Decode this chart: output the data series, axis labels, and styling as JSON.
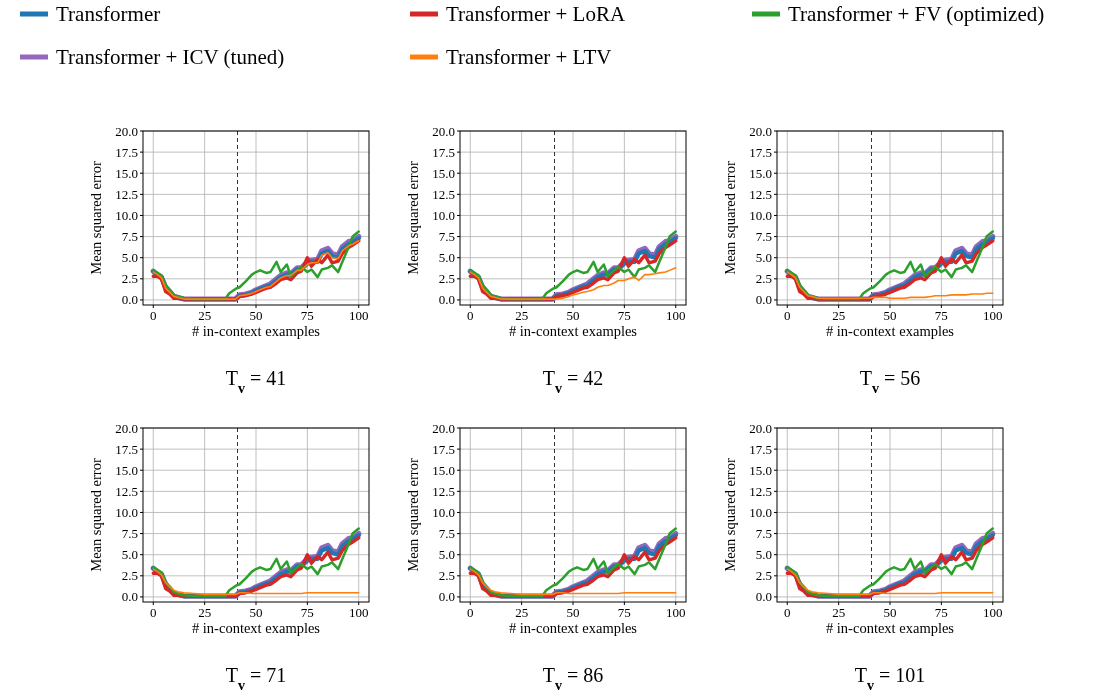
{
  "chart_data": [
    {
      "type": "line",
      "title": "T$_{v}$ = 41",
      "xlabel": "# in-context examples",
      "ylabel": "Mean squared error",
      "legend": "top",
      "grid": true,
      "xlim": [
        -5,
        105
      ],
      "xticks": [
        0,
        25,
        50,
        75,
        100
      ],
      "ylim": [
        -0.6,
        20
      ],
      "yticks": [
        {
          "value": 0,
          "label": "0.0"
        },
        {
          "value": 2.5,
          "label": "2.5"
        },
        {
          "value": 5,
          "label": "5.0"
        },
        {
          "value": 7.5,
          "label": "7.5"
        },
        {
          "value": 10,
          "label": "10.0"
        },
        {
          "value": 12.5,
          "label": "12.5"
        },
        {
          "value": 15,
          "label": "15.0"
        },
        {
          "value": 17.5,
          "label": "17.5"
        },
        {
          "value": 20,
          "label": "20.0"
        }
      ],
      "ref_lines": [
        {
          "axis": "x",
          "value": 41,
          "label": null,
          "color": "#333333",
          "line_style": "dashed"
        }
      ],
      "x": [
        0,
        2,
        4,
        6,
        8,
        10,
        12,
        15,
        20,
        25,
        30,
        35,
        37,
        40,
        42,
        45,
        48,
        50,
        52,
        55,
        57,
        60,
        62,
        65,
        67,
        70,
        72,
        75,
        77,
        80,
        82,
        85,
        87,
        90,
        92,
        95,
        97,
        100
      ],
      "series": [
        {
          "name": "Transformer",
          "color": "#1f77b4",
          "values": [
            3.4,
            3.0,
            2.7,
            1.5,
            1.0,
            0.4,
            0.3,
            0.1,
            0.1,
            0.1,
            0.1,
            0.1,
            0.1,
            0.1,
            0.5,
            0.6,
            0.8,
            1.1,
            1.3,
            1.6,
            1.7,
            2.3,
            2.7,
            3.0,
            3.0,
            3.6,
            3.6,
            4.3,
            4.5,
            4.5,
            5.5,
            5.8,
            5.2,
            5.0,
            6.0,
            6.6,
            6.8,
            7.3
          ]
        },
        {
          "name": "Transformer + LoRA",
          "color": "#d62728",
          "values": [
            2.8,
            2.8,
            2.5,
            1.0,
            0.7,
            0.2,
            0.2,
            0.1,
            0.1,
            0.1,
            0.1,
            0.1,
            0.1,
            0.1,
            0.4,
            0.5,
            0.7,
            0.9,
            1.1,
            1.4,
            1.5,
            2.0,
            2.4,
            2.6,
            2.4,
            3.2,
            3.4,
            5.0,
            4.0,
            4.8,
            4.4,
            5.3,
            4.4,
            4.6,
            5.5,
            6.2,
            6.5,
            7.0
          ]
        },
        {
          "name": "Transformer + FV (optimized)",
          "color": "#2ca02c",
          "values": [
            3.5,
            3.2,
            2.9,
            1.8,
            1.2,
            0.6,
            0.4,
            0.2,
            0.1,
            0.1,
            0.1,
            0.1,
            0.8,
            1.3,
            1.5,
            2.2,
            3.0,
            3.3,
            3.5,
            3.2,
            3.3,
            4.5,
            3.3,
            4.2,
            2.8,
            3.5,
            3.9,
            3.3,
            3.6,
            2.7,
            3.6,
            3.8,
            4.1,
            3.3,
            4.5,
            6.2,
            7.5,
            8.1
          ]
        },
        {
          "name": "Transformer + ICV (tuned)",
          "color": "#9467bd",
          "values": [
            3.4,
            3.0,
            2.7,
            1.5,
            1.0,
            0.4,
            0.3,
            0.1,
            0.1,
            0.1,
            0.1,
            0.1,
            0.1,
            0.1,
            0.6,
            0.7,
            0.9,
            1.2,
            1.4,
            1.7,
            1.9,
            2.5,
            2.9,
            3.2,
            3.1,
            3.8,
            3.8,
            4.5,
            4.7,
            4.8,
            5.8,
            6.1,
            5.5,
            5.3,
            6.3,
            6.9,
            7.0,
            7.5
          ]
        },
        {
          "name": "Transformer + LTV",
          "color": "#ff7f0e",
          "values": [
            3.3,
            3.0,
            2.6,
            1.4,
            0.9,
            0.4,
            0.3,
            0.1,
            0.1,
            0.1,
            0.1,
            0.1,
            0.1,
            0.1,
            0.5,
            0.6,
            0.8,
            1.0,
            1.2,
            1.5,
            1.6,
            2.2,
            2.6,
            2.9,
            2.9,
            3.5,
            3.5,
            4.2,
            4.4,
            4.4,
            5.3,
            5.6,
            5.0,
            4.9,
            5.8,
            6.4,
            6.6,
            7.0
          ]
        }
      ]
    },
    {
      "type": "line",
      "title": "T$_{v}$ = 42",
      "xlabel": "# in-context examples",
      "ylabel": "Mean squared error",
      "grid": true,
      "xlim": [
        -5,
        105
      ],
      "xticks": [
        0,
        25,
        50,
        75,
        100
      ],
      "ylim": [
        -0.6,
        20
      ],
      "yticks": [
        {
          "value": 0,
          "label": "0.0"
        },
        {
          "value": 2.5,
          "label": "2.5"
        },
        {
          "value": 5,
          "label": "5.0"
        },
        {
          "value": 7.5,
          "label": "7.5"
        },
        {
          "value": 10,
          "label": "10.0"
        },
        {
          "value": 12.5,
          "label": "12.5"
        },
        {
          "value": 15,
          "label": "15.0"
        },
        {
          "value": 17.5,
          "label": "17.5"
        },
        {
          "value": 20,
          "label": "20.0"
        }
      ],
      "ref_lines": [
        {
          "axis": "x",
          "value": 41,
          "label": null,
          "color": "#333333",
          "line_style": "dashed"
        }
      ],
      "x": [
        0,
        2,
        4,
        6,
        8,
        10,
        12,
        15,
        20,
        25,
        30,
        35,
        37,
        40,
        42,
        45,
        48,
        50,
        52,
        55,
        57,
        60,
        62,
        65,
        67,
        70,
        72,
        75,
        77,
        80,
        82,
        85,
        87,
        90,
        92,
        95,
        97,
        100
      ],
      "series": [
        {
          "color": "#1f77b4",
          "values": [
            3.4,
            3.0,
            2.7,
            1.5,
            1.0,
            0.4,
            0.3,
            0.1,
            0.1,
            0.1,
            0.1,
            0.1,
            0.1,
            0.1,
            0.5,
            0.6,
            0.8,
            1.1,
            1.3,
            1.6,
            1.7,
            2.3,
            2.7,
            3.0,
            3.0,
            3.6,
            3.6,
            4.3,
            4.5,
            4.5,
            5.5,
            5.8,
            5.2,
            5.0,
            6.0,
            6.6,
            6.8,
            7.3
          ]
        },
        {
          "color": "#d62728",
          "values": [
            2.8,
            2.8,
            2.5,
            1.0,
            0.7,
            0.2,
            0.2,
            0.1,
            0.1,
            0.1,
            0.1,
            0.1,
            0.1,
            0.1,
            0.4,
            0.5,
            0.7,
            0.9,
            1.1,
            1.4,
            1.5,
            2.0,
            2.4,
            2.6,
            2.4,
            3.2,
            3.4,
            5.0,
            4.0,
            4.8,
            4.4,
            5.3,
            4.4,
            4.6,
            5.5,
            6.2,
            6.5,
            7.0
          ]
        },
        {
          "color": "#2ca02c",
          "values": [
            3.5,
            3.2,
            2.9,
            1.8,
            1.2,
            0.6,
            0.4,
            0.2,
            0.1,
            0.1,
            0.1,
            0.1,
            0.8,
            1.3,
            1.5,
            2.2,
            3.0,
            3.3,
            3.5,
            3.2,
            3.3,
            4.5,
            3.3,
            4.2,
            2.8,
            3.5,
            3.9,
            3.3,
            3.6,
            2.7,
            3.6,
            3.8,
            4.1,
            3.3,
            4.5,
            6.2,
            7.5,
            8.1
          ]
        },
        {
          "color": "#9467bd",
          "values": [
            3.4,
            3.0,
            2.7,
            1.5,
            1.0,
            0.4,
            0.3,
            0.1,
            0.1,
            0.1,
            0.1,
            0.1,
            0.1,
            0.1,
            0.6,
            0.7,
            0.9,
            1.2,
            1.4,
            1.7,
            1.9,
            2.5,
            2.9,
            3.2,
            3.1,
            3.8,
            3.8,
            4.5,
            4.7,
            4.8,
            5.8,
            6.1,
            5.5,
            5.3,
            6.3,
            6.9,
            7.0,
            7.5
          ]
        },
        {
          "color": "#ff7f0e",
          "values": [
            3.3,
            3.0,
            2.6,
            1.4,
            0.9,
            0.4,
            0.3,
            0.1,
            0.1,
            0.1,
            0.1,
            0.1,
            0.1,
            0.1,
            0.1,
            0.2,
            0.4,
            0.6,
            0.7,
            0.9,
            1.0,
            1.2,
            1.5,
            1.7,
            1.7,
            2.0,
            2.3,
            2.3,
            2.5,
            2.7,
            2.3,
            3.0,
            3.0,
            3.1,
            3.2,
            3.3,
            3.5,
            3.8
          ]
        }
      ]
    },
    {
      "type": "line",
      "title": "T$_{v}$ = 56",
      "xlabel": "# in-context examples",
      "ylabel": "Mean squared error",
      "grid": true,
      "xlim": [
        -5,
        105
      ],
      "xticks": [
        0,
        25,
        50,
        75,
        100
      ],
      "ylim": [
        -0.6,
        20
      ],
      "yticks": [
        {
          "value": 0,
          "label": "0.0"
        },
        {
          "value": 2.5,
          "label": "2.5"
        },
        {
          "value": 5,
          "label": "5.0"
        },
        {
          "value": 7.5,
          "label": "7.5"
        },
        {
          "value": 10,
          "label": "10.0"
        },
        {
          "value": 12.5,
          "label": "12.5"
        },
        {
          "value": 15,
          "label": "15.0"
        },
        {
          "value": 17.5,
          "label": "17.5"
        },
        {
          "value": 20,
          "label": "20.0"
        }
      ],
      "ref_lines": [
        {
          "axis": "x",
          "value": 41,
          "label": null,
          "color": "#333333",
          "line_style": "dashed"
        }
      ],
      "x": [
        0,
        2,
        4,
        6,
        8,
        10,
        12,
        15,
        20,
        25,
        30,
        35,
        37,
        40,
        42,
        45,
        48,
        50,
        52,
        55,
        57,
        60,
        62,
        65,
        67,
        70,
        72,
        75,
        77,
        80,
        82,
        85,
        87,
        90,
        92,
        95,
        97,
        100
      ],
      "series": [
        {
          "color": "#1f77b4",
          "values": [
            3.4,
            3.0,
            2.7,
            1.5,
            1.0,
            0.4,
            0.3,
            0.1,
            0.1,
            0.1,
            0.1,
            0.1,
            0.1,
            0.1,
            0.5,
            0.6,
            0.8,
            1.1,
            1.3,
            1.6,
            1.7,
            2.3,
            2.7,
            3.0,
            3.0,
            3.6,
            3.6,
            4.3,
            4.5,
            4.5,
            5.5,
            5.8,
            5.2,
            5.0,
            6.0,
            6.6,
            6.8,
            7.3
          ]
        },
        {
          "color": "#d62728",
          "values": [
            2.8,
            2.8,
            2.5,
            1.0,
            0.7,
            0.2,
            0.2,
            0.1,
            0.1,
            0.1,
            0.1,
            0.1,
            0.1,
            0.1,
            0.4,
            0.5,
            0.7,
            0.9,
            1.1,
            1.4,
            1.5,
            2.0,
            2.4,
            2.6,
            2.4,
            3.2,
            3.4,
            5.0,
            4.0,
            4.8,
            4.4,
            5.3,
            4.4,
            4.6,
            5.5,
            6.2,
            6.5,
            7.0
          ]
        },
        {
          "color": "#2ca02c",
          "values": [
            3.5,
            3.2,
            2.9,
            1.8,
            1.2,
            0.6,
            0.4,
            0.2,
            0.1,
            0.1,
            0.1,
            0.1,
            0.8,
            1.3,
            1.5,
            2.2,
            3.0,
            3.3,
            3.5,
            3.2,
            3.3,
            4.5,
            3.3,
            4.2,
            2.8,
            3.5,
            3.9,
            3.3,
            3.6,
            2.7,
            3.6,
            3.8,
            4.1,
            3.3,
            4.5,
            6.2,
            7.5,
            8.1
          ]
        },
        {
          "color": "#9467bd",
          "values": [
            3.4,
            3.0,
            2.7,
            1.5,
            1.0,
            0.4,
            0.3,
            0.1,
            0.1,
            0.1,
            0.1,
            0.1,
            0.1,
            0.1,
            0.6,
            0.7,
            0.9,
            1.2,
            1.4,
            1.7,
            1.9,
            2.5,
            2.9,
            3.2,
            3.1,
            3.8,
            3.8,
            4.5,
            4.7,
            4.8,
            5.8,
            6.1,
            5.5,
            5.3,
            6.3,
            6.9,
            7.0,
            7.5
          ]
        },
        {
          "color": "#ff7f0e",
          "values": [
            3.3,
            3.0,
            2.6,
            1.5,
            1.0,
            0.5,
            0.4,
            0.2,
            0.2,
            0.2,
            0.2,
            0.2,
            0.2,
            0.2,
            0.3,
            0.3,
            0.3,
            0.2,
            0.2,
            0.2,
            0.2,
            0.3,
            0.3,
            0.3,
            0.3,
            0.4,
            0.5,
            0.5,
            0.5,
            0.6,
            0.6,
            0.6,
            0.6,
            0.7,
            0.7,
            0.7,
            0.8,
            0.8
          ]
        }
      ]
    },
    {
      "type": "line",
      "title": "T$_{v}$ = 71",
      "xlabel": "# in-context examples",
      "ylabel": "Mean squared error",
      "grid": true,
      "xlim": [
        -5,
        105
      ],
      "xticks": [
        0,
        25,
        50,
        75,
        100
      ],
      "ylim": [
        -0.6,
        20
      ],
      "yticks": [
        {
          "value": 0,
          "label": "0.0"
        },
        {
          "value": 2.5,
          "label": "2.5"
        },
        {
          "value": 5,
          "label": "5.0"
        },
        {
          "value": 7.5,
          "label": "7.5"
        },
        {
          "value": 10,
          "label": "10.0"
        },
        {
          "value": 12.5,
          "label": "12.5"
        },
        {
          "value": 15,
          "label": "15.0"
        },
        {
          "value": 17.5,
          "label": "17.5"
        },
        {
          "value": 20,
          "label": "20.0"
        }
      ],
      "ref_lines": [
        {
          "axis": "x",
          "value": 41,
          "label": null,
          "color": "#333333",
          "line_style": "dashed"
        }
      ],
      "x": [
        0,
        2,
        4,
        6,
        8,
        10,
        12,
        15,
        20,
        25,
        30,
        35,
        37,
        40,
        42,
        45,
        48,
        50,
        52,
        55,
        57,
        60,
        62,
        65,
        67,
        70,
        72,
        75,
        77,
        80,
        82,
        85,
        87,
        90,
        92,
        95,
        97,
        100
      ],
      "series": [
        {
          "color": "#1f77b4",
          "values": [
            3.4,
            3.0,
            2.7,
            1.5,
            1.0,
            0.4,
            0.3,
            0.1,
            0.1,
            0.1,
            0.1,
            0.1,
            0.1,
            0.1,
            0.5,
            0.6,
            0.8,
            1.1,
            1.3,
            1.6,
            1.7,
            2.3,
            2.7,
            3.0,
            3.0,
            3.6,
            3.6,
            4.3,
            4.5,
            4.5,
            5.5,
            5.8,
            5.2,
            5.0,
            6.0,
            6.6,
            6.8,
            7.3
          ]
        },
        {
          "color": "#d62728",
          "values": [
            2.8,
            2.8,
            2.5,
            1.0,
            0.7,
            0.2,
            0.2,
            0.1,
            0.1,
            0.1,
            0.1,
            0.1,
            0.1,
            0.1,
            0.4,
            0.5,
            0.7,
            0.9,
            1.1,
            1.4,
            1.5,
            2.0,
            2.4,
            2.6,
            2.4,
            3.2,
            3.4,
            5.0,
            4.0,
            4.8,
            4.4,
            5.3,
            4.4,
            4.6,
            5.5,
            6.2,
            6.5,
            7.0
          ]
        },
        {
          "color": "#2ca02c",
          "values": [
            3.5,
            3.2,
            2.9,
            1.8,
            1.2,
            0.6,
            0.4,
            0.2,
            0.1,
            0.1,
            0.1,
            0.1,
            0.8,
            1.3,
            1.5,
            2.2,
            3.0,
            3.3,
            3.5,
            3.2,
            3.3,
            4.5,
            3.3,
            4.2,
            2.8,
            3.5,
            3.9,
            3.3,
            3.6,
            2.7,
            3.6,
            3.8,
            4.1,
            3.3,
            4.5,
            6.2,
            7.5,
            8.1
          ]
        },
        {
          "color": "#9467bd",
          "values": [
            3.4,
            3.0,
            2.7,
            1.5,
            1.0,
            0.4,
            0.3,
            0.1,
            0.1,
            0.1,
            0.1,
            0.1,
            0.1,
            0.1,
            0.6,
            0.7,
            0.9,
            1.2,
            1.4,
            1.7,
            1.9,
            2.5,
            2.9,
            3.2,
            3.1,
            3.8,
            3.8,
            4.5,
            4.7,
            4.8,
            5.8,
            6.1,
            5.5,
            5.3,
            6.3,
            6.9,
            7.0,
            7.5
          ]
        },
        {
          "color": "#ff7f0e",
          "values": [
            3.3,
            3.0,
            2.6,
            1.7,
            1.2,
            0.8,
            0.6,
            0.5,
            0.4,
            0.3,
            0.3,
            0.3,
            0.3,
            0.3,
            0.5,
            0.5,
            0.4,
            0.4,
            0.4,
            0.4,
            0.4,
            0.4,
            0.4,
            0.4,
            0.4,
            0.4,
            0.4,
            0.5,
            0.5,
            0.5,
            0.5,
            0.5,
            0.5,
            0.5,
            0.5,
            0.5,
            0.5,
            0.5
          ]
        }
      ]
    },
    {
      "type": "line",
      "title": "T$_{v}$ = 86",
      "xlabel": "# in-context examples",
      "ylabel": "Mean squared error",
      "grid": true,
      "xlim": [
        -5,
        105
      ],
      "xticks": [
        0,
        25,
        50,
        75,
        100
      ],
      "ylim": [
        -0.6,
        20
      ],
      "yticks": [
        {
          "value": 0,
          "label": "0.0"
        },
        {
          "value": 2.5,
          "label": "2.5"
        },
        {
          "value": 5,
          "label": "5.0"
        },
        {
          "value": 7.5,
          "label": "7.5"
        },
        {
          "value": 10,
          "label": "10.0"
        },
        {
          "value": 12.5,
          "label": "12.5"
        },
        {
          "value": 15,
          "label": "15.0"
        },
        {
          "value": 17.5,
          "label": "17.5"
        },
        {
          "value": 20,
          "label": "20.0"
        }
      ],
      "ref_lines": [
        {
          "axis": "x",
          "value": 41,
          "label": null,
          "color": "#333333",
          "line_style": "dashed"
        }
      ],
      "x": [
        0,
        2,
        4,
        6,
        8,
        10,
        12,
        15,
        20,
        25,
        30,
        35,
        37,
        40,
        42,
        45,
        48,
        50,
        52,
        55,
        57,
        60,
        62,
        65,
        67,
        70,
        72,
        75,
        77,
        80,
        82,
        85,
        87,
        90,
        92,
        95,
        97,
        100
      ],
      "series": [
        {
          "color": "#1f77b4",
          "values": [
            3.4,
            3.0,
            2.7,
            1.5,
            1.0,
            0.4,
            0.3,
            0.1,
            0.1,
            0.1,
            0.1,
            0.1,
            0.1,
            0.1,
            0.5,
            0.6,
            0.8,
            1.1,
            1.3,
            1.6,
            1.7,
            2.3,
            2.7,
            3.0,
            3.0,
            3.6,
            3.6,
            4.3,
            4.5,
            4.5,
            5.5,
            5.8,
            5.2,
            5.0,
            6.0,
            6.6,
            6.8,
            7.3
          ]
        },
        {
          "color": "#d62728",
          "values": [
            2.8,
            2.8,
            2.5,
            1.0,
            0.7,
            0.2,
            0.2,
            0.1,
            0.1,
            0.1,
            0.1,
            0.1,
            0.1,
            0.1,
            0.4,
            0.5,
            0.7,
            0.9,
            1.1,
            1.4,
            1.5,
            2.0,
            2.4,
            2.6,
            2.4,
            3.2,
            3.4,
            5.0,
            4.0,
            4.8,
            4.4,
            5.3,
            4.4,
            4.6,
            5.5,
            6.2,
            6.5,
            7.0
          ]
        },
        {
          "color": "#2ca02c",
          "values": [
            3.5,
            3.2,
            2.9,
            1.8,
            1.2,
            0.6,
            0.4,
            0.2,
            0.1,
            0.1,
            0.1,
            0.1,
            0.8,
            1.3,
            1.5,
            2.2,
            3.0,
            3.3,
            3.5,
            3.2,
            3.3,
            4.5,
            3.3,
            4.2,
            2.8,
            3.5,
            3.9,
            3.3,
            3.6,
            2.7,
            3.6,
            3.8,
            4.1,
            3.3,
            4.5,
            6.2,
            7.5,
            8.1
          ]
        },
        {
          "color": "#9467bd",
          "values": [
            3.4,
            3.0,
            2.7,
            1.5,
            1.0,
            0.4,
            0.3,
            0.1,
            0.1,
            0.1,
            0.1,
            0.1,
            0.1,
            0.1,
            0.6,
            0.7,
            0.9,
            1.2,
            1.4,
            1.7,
            1.9,
            2.5,
            2.9,
            3.2,
            3.1,
            3.8,
            3.8,
            4.5,
            4.7,
            4.8,
            5.8,
            6.1,
            5.5,
            5.3,
            6.3,
            6.9,
            7.0,
            7.5
          ]
        },
        {
          "color": "#ff7f0e",
          "values": [
            3.3,
            3.0,
            2.6,
            1.7,
            1.2,
            0.8,
            0.6,
            0.5,
            0.4,
            0.3,
            0.3,
            0.3,
            0.3,
            0.3,
            0.5,
            0.5,
            0.4,
            0.4,
            0.4,
            0.4,
            0.4,
            0.4,
            0.4,
            0.4,
            0.4,
            0.4,
            0.4,
            0.5,
            0.5,
            0.5,
            0.5,
            0.5,
            0.5,
            0.5,
            0.5,
            0.5,
            0.5,
            0.5
          ]
        }
      ]
    },
    {
      "type": "line",
      "title": "T$_{v}$ = 101",
      "xlabel": "# in-context examples",
      "ylabel": "Mean squared error",
      "grid": true,
      "xlim": [
        -5,
        105
      ],
      "xticks": [
        0,
        25,
        50,
        75,
        100
      ],
      "ylim": [
        -0.6,
        20
      ],
      "yticks": [
        {
          "value": 0,
          "label": "0.0"
        },
        {
          "value": 2.5,
          "label": "2.5"
        },
        {
          "value": 5,
          "label": "5.0"
        },
        {
          "value": 7.5,
          "label": "7.5"
        },
        {
          "value": 10,
          "label": "10.0"
        },
        {
          "value": 12.5,
          "label": "12.5"
        },
        {
          "value": 15,
          "label": "15.0"
        },
        {
          "value": 17.5,
          "label": "17.5"
        },
        {
          "value": 20,
          "label": "20.0"
        }
      ],
      "ref_lines": [
        {
          "axis": "x",
          "value": 41,
          "label": null,
          "color": "#333333",
          "line_style": "dashed"
        }
      ],
      "x": [
        0,
        2,
        4,
        6,
        8,
        10,
        12,
        15,
        20,
        25,
        30,
        35,
        37,
        40,
        42,
        45,
        48,
        50,
        52,
        55,
        57,
        60,
        62,
        65,
        67,
        70,
        72,
        75,
        77,
        80,
        82,
        85,
        87,
        90,
        92,
        95,
        97,
        100
      ],
      "series": [
        {
          "color": "#1f77b4",
          "values": [
            3.4,
            3.0,
            2.7,
            1.5,
            1.0,
            0.4,
            0.3,
            0.1,
            0.1,
            0.1,
            0.1,
            0.1,
            0.1,
            0.1,
            0.5,
            0.6,
            0.8,
            1.1,
            1.3,
            1.6,
            1.7,
            2.3,
            2.7,
            3.0,
            3.0,
            3.6,
            3.6,
            4.3,
            4.5,
            4.5,
            5.5,
            5.8,
            5.2,
            5.0,
            6.0,
            6.6,
            6.8,
            7.3
          ]
        },
        {
          "color": "#d62728",
          "values": [
            2.8,
            2.8,
            2.5,
            1.0,
            0.7,
            0.2,
            0.2,
            0.1,
            0.1,
            0.1,
            0.1,
            0.1,
            0.1,
            0.1,
            0.4,
            0.5,
            0.7,
            0.9,
            1.1,
            1.4,
            1.5,
            2.0,
            2.4,
            2.6,
            2.4,
            3.2,
            3.4,
            5.0,
            4.0,
            4.8,
            4.4,
            5.3,
            4.4,
            4.6,
            5.5,
            6.2,
            6.5,
            7.0
          ]
        },
        {
          "color": "#2ca02c",
          "values": [
            3.5,
            3.2,
            2.9,
            1.8,
            1.2,
            0.6,
            0.4,
            0.2,
            0.1,
            0.1,
            0.1,
            0.1,
            0.8,
            1.3,
            1.5,
            2.2,
            3.0,
            3.3,
            3.5,
            3.2,
            3.3,
            4.5,
            3.3,
            4.2,
            2.8,
            3.5,
            3.9,
            3.3,
            3.6,
            2.7,
            3.6,
            3.8,
            4.1,
            3.3,
            4.5,
            6.2,
            7.5,
            8.1
          ]
        },
        {
          "color": "#9467bd",
          "values": [
            3.4,
            3.0,
            2.7,
            1.5,
            1.0,
            0.4,
            0.3,
            0.1,
            0.1,
            0.1,
            0.1,
            0.1,
            0.1,
            0.1,
            0.6,
            0.7,
            0.9,
            1.2,
            1.4,
            1.7,
            1.9,
            2.5,
            2.9,
            3.2,
            3.1,
            3.8,
            3.8,
            4.5,
            4.7,
            4.8,
            5.8,
            6.1,
            5.5,
            5.3,
            6.3,
            6.9,
            7.0,
            7.5
          ]
        },
        {
          "color": "#ff7f0e",
          "values": [
            3.3,
            3.0,
            2.6,
            1.7,
            1.2,
            0.8,
            0.6,
            0.5,
            0.4,
            0.3,
            0.3,
            0.3,
            0.3,
            0.3,
            0.5,
            0.5,
            0.4,
            0.4,
            0.4,
            0.4,
            0.4,
            0.4,
            0.4,
            0.4,
            0.4,
            0.4,
            0.4,
            0.5,
            0.5,
            0.5,
            0.5,
            0.5,
            0.5,
            0.5,
            0.5,
            0.5,
            0.5,
            0.5
          ]
        }
      ]
    }
  ]
}
